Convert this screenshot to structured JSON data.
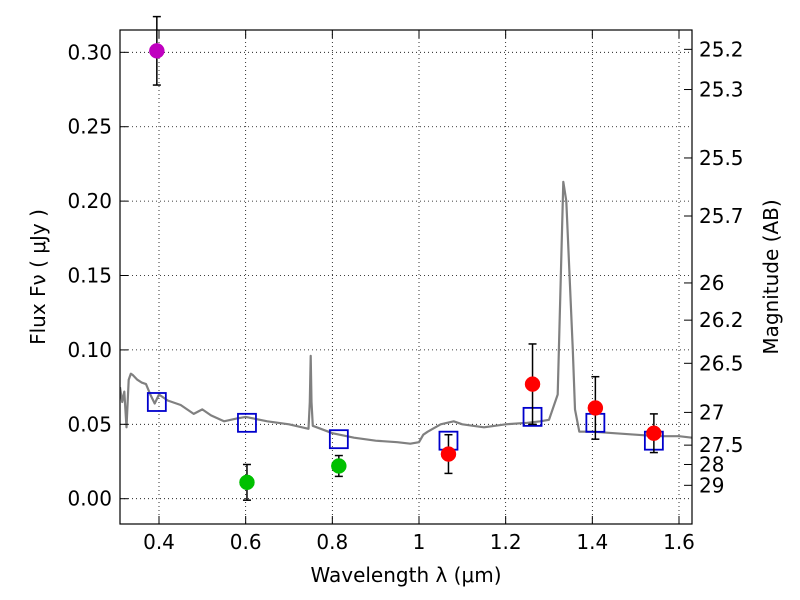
{
  "chart_data": {
    "type": "scatter",
    "xlabel": "Wavelength  λ (μm)",
    "ylabel": "Flux  Fν  ( μJy )",
    "ylabel_right": "Magnitude (AB)",
    "xlim": [
      0.31,
      1.63
    ],
    "ylim": [
      -0.017,
      0.315
    ],
    "x_ticks": [
      0.4,
      0.6,
      0.8,
      1.0,
      1.2,
      1.4,
      1.6
    ],
    "x_tick_labels": [
      "0.4",
      "0.6",
      "0.8",
      "1",
      "1.2",
      "1.4",
      "1.6"
    ],
    "y_ticks": [
      0.0,
      0.05,
      0.1,
      0.15,
      0.2,
      0.25,
      0.3
    ],
    "y_tick_labels": [
      "0.00",
      "0.05",
      "0.10",
      "0.15",
      "0.20",
      "0.25",
      "0.30"
    ],
    "right_ticks": [
      {
        "label": "25.2",
        "flux": 0.302
      },
      {
        "label": "25.3",
        "flux": 0.275
      },
      {
        "label": "25.5",
        "flux": 0.229
      },
      {
        "label": "25.7",
        "flux": 0.19
      },
      {
        "label": "26",
        "flux": 0.145
      },
      {
        "label": "26.2",
        "flux": 0.12
      },
      {
        "label": "26.5",
        "flux": 0.091
      },
      {
        "label": "27",
        "flux": 0.058
      },
      {
        "label": "27.5",
        "flux": 0.036
      },
      {
        "label": "28",
        "flux": 0.023
      },
      {
        "label": "29",
        "flux": 0.009
      }
    ],
    "grid": true,
    "colors": {
      "magenta": "#bf00bf",
      "green": "#00c000",
      "red": "#ff0000",
      "blue": "#0000cc",
      "sed": "#808080"
    },
    "series": [
      {
        "name": "magenta point",
        "color": "magenta",
        "points": [
          {
            "x": 0.395,
            "y": 0.301,
            "err": 0.023
          }
        ]
      },
      {
        "name": "green points",
        "color": "green",
        "points": [
          {
            "x": 0.603,
            "y": 0.011,
            "err": 0.012
          },
          {
            "x": 0.815,
            "y": 0.022,
            "err": 0.007
          }
        ]
      },
      {
        "name": "red points",
        "color": "red",
        "points": [
          {
            "x": 1.068,
            "y": 0.03,
            "err": 0.013
          },
          {
            "x": 1.262,
            "y": 0.077,
            "err": 0.027
          },
          {
            "x": 1.407,
            "y": 0.061,
            "err": 0.021
          },
          {
            "x": 1.542,
            "y": 0.044,
            "err": 0.013
          }
        ]
      },
      {
        "name": "model photometry",
        "color": "blue",
        "marker": "open-square",
        "points": [
          {
            "x": 0.395,
            "y": 0.065
          },
          {
            "x": 0.603,
            "y": 0.051
          },
          {
            "x": 0.815,
            "y": 0.04
          },
          {
            "x": 1.068,
            "y": 0.039
          },
          {
            "x": 1.262,
            "y": 0.055
          },
          {
            "x": 1.407,
            "y": 0.051
          },
          {
            "x": 1.542,
            "y": 0.039
          }
        ]
      },
      {
        "name": "model SED",
        "color": "sed",
        "type": "line",
        "x": [
          0.31,
          0.315,
          0.32,
          0.325,
          0.33,
          0.335,
          0.34,
          0.35,
          0.36,
          0.37,
          0.38,
          0.39,
          0.4,
          0.42,
          0.45,
          0.48,
          0.5,
          0.52,
          0.55,
          0.58,
          0.6,
          0.65,
          0.7,
          0.745,
          0.748,
          0.75,
          0.752,
          0.755,
          0.8,
          0.85,
          0.9,
          0.95,
          0.98,
          1.0,
          1.01,
          1.02,
          1.05,
          1.08,
          1.1,
          1.15,
          1.2,
          1.25,
          1.28,
          1.3,
          1.32,
          1.333,
          1.34,
          1.355,
          1.36,
          1.37,
          1.4,
          1.45,
          1.5,
          1.55,
          1.6,
          1.63
        ],
        "y": [
          0.075,
          0.065,
          0.072,
          0.048,
          0.08,
          0.084,
          0.083,
          0.08,
          0.078,
          0.077,
          0.07,
          0.064,
          0.07,
          0.066,
          0.063,
          0.057,
          0.06,
          0.056,
          0.052,
          0.054,
          0.055,
          0.052,
          0.05,
          0.047,
          0.065,
          0.096,
          0.065,
          0.049,
          0.044,
          0.041,
          0.039,
          0.038,
          0.037,
          0.038,
          0.043,
          0.045,
          0.05,
          0.052,
          0.05,
          0.048,
          0.05,
          0.051,
          0.052,
          0.053,
          0.07,
          0.213,
          0.2,
          0.1,
          0.06,
          0.045,
          0.045,
          0.044,
          0.043,
          0.042,
          0.042,
          0.041
        ]
      }
    ]
  }
}
